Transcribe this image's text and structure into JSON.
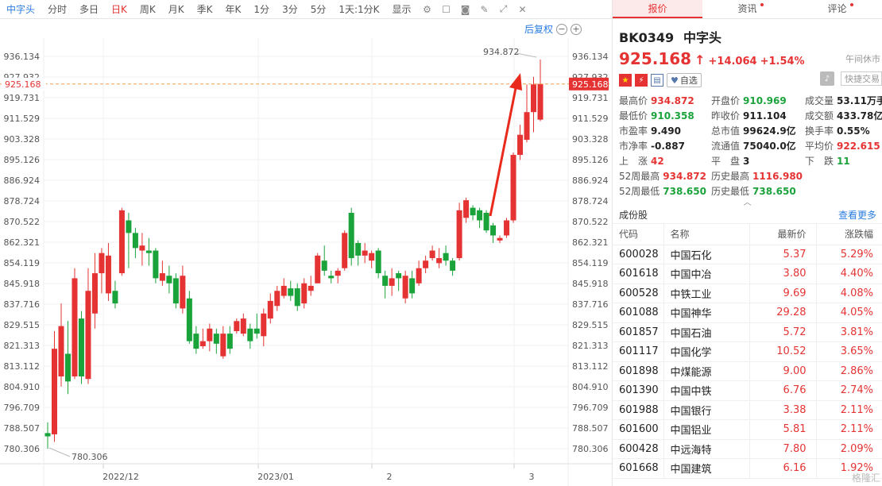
{
  "toolbar": {
    "items": [
      "中字头",
      "分时",
      "多日",
      "日K",
      "周K",
      "月K",
      "季K",
      "年K",
      "1分",
      "3分",
      "5分",
      "1天:1分K",
      "显示"
    ],
    "active": "日K",
    "selected": "中字头"
  },
  "subbar": {
    "fq": "后复权"
  },
  "price_labels": {
    "last_price": "925.168",
    "high_marker": "934.872",
    "low_marker": "780.306"
  },
  "chart_data": {
    "type": "candlestick",
    "ylim": [
      780.306,
      936.134
    ],
    "yticks": [
      "936.134",
      "927.932",
      "919.731",
      "911.529",
      "903.328",
      "895.126",
      "886.924",
      "878.724",
      "870.522",
      "862.321",
      "854.119",
      "845.918",
      "837.716",
      "829.515",
      "821.313",
      "813.112",
      "804.910",
      "796.709",
      "788.507",
      "780.306"
    ],
    "xticks": [
      "2022/12",
      "2023/01",
      "2",
      "3"
    ],
    "last_price": 925.168,
    "candles": [
      {
        "o": 786.5,
        "c": 785.2,
        "h": 790.8,
        "l": 780.3
      },
      {
        "o": 786.0,
        "c": 820.0,
        "h": 827.0,
        "l": 783.0
      },
      {
        "o": 809.0,
        "c": 829.0,
        "h": 838.0,
        "l": 805.0
      },
      {
        "o": 818.0,
        "c": 807.0,
        "h": 831.0,
        "l": 802.0
      },
      {
        "o": 809.0,
        "c": 848.0,
        "h": 852.0,
        "l": 808.0
      },
      {
        "o": 832.0,
        "c": 809.0,
        "h": 835.0,
        "l": 806.0
      },
      {
        "o": 808.0,
        "c": 843.0,
        "h": 852.0,
        "l": 806.0
      },
      {
        "o": 834.0,
        "c": 850.0,
        "h": 858.0,
        "l": 828.0
      },
      {
        "o": 850.0,
        "c": 858.0,
        "h": 860.0,
        "l": 842.0
      },
      {
        "o": 842.0,
        "c": 857.0,
        "h": 862.0,
        "l": 839.0
      },
      {
        "o": 843.0,
        "c": 838.0,
        "h": 847.0,
        "l": 836.0
      },
      {
        "o": 850.0,
        "c": 875.0,
        "h": 876.0,
        "l": 849.0
      },
      {
        "o": 871.0,
        "c": 866.0,
        "h": 874.0,
        "l": 852.0
      },
      {
        "o": 866.0,
        "c": 860.0,
        "h": 868.0,
        "l": 856.0
      },
      {
        "o": 859.0,
        "c": 861.0,
        "h": 866.0,
        "l": 853.0
      },
      {
        "o": 859.0,
        "c": 858.0,
        "h": 864.0,
        "l": 853.0
      },
      {
        "o": 859.0,
        "c": 848.0,
        "h": 860.0,
        "l": 846.0
      },
      {
        "o": 847.0,
        "c": 850.0,
        "h": 855.0,
        "l": 845.0
      },
      {
        "o": 849.0,
        "c": 846.0,
        "h": 853.0,
        "l": 842.0
      },
      {
        "o": 848.0,
        "c": 838.0,
        "h": 850.0,
        "l": 836.0
      },
      {
        "o": 836.0,
        "c": 849.0,
        "h": 853.0,
        "l": 834.0
      },
      {
        "o": 840.0,
        "c": 823.0,
        "h": 843.0,
        "l": 822.0
      },
      {
        "o": 826.0,
        "c": 820.0,
        "h": 829.0,
        "l": 818.0
      },
      {
        "o": 821.0,
        "c": 823.0,
        "h": 828.0,
        "l": 820.0
      },
      {
        "o": 823.0,
        "c": 828.0,
        "h": 830.0,
        "l": 819.0
      },
      {
        "o": 826.0,
        "c": 822.0,
        "h": 828.0,
        "l": 818.0
      },
      {
        "o": 817.0,
        "c": 826.0,
        "h": 829.0,
        "l": 816.0
      },
      {
        "o": 826.0,
        "c": 820.0,
        "h": 829.0,
        "l": 818.0
      },
      {
        "o": 827.0,
        "c": 831.0,
        "h": 832.0,
        "l": 826.0
      },
      {
        "o": 826.0,
        "c": 832.0,
        "h": 834.0,
        "l": 825.0
      },
      {
        "o": 828.0,
        "c": 823.0,
        "h": 830.0,
        "l": 820.0
      },
      {
        "o": 828.0,
        "c": 826.0,
        "h": 834.0,
        "l": 824.0
      },
      {
        "o": 825.0,
        "c": 834.0,
        "h": 836.0,
        "l": 821.0
      },
      {
        "o": 832.0,
        "c": 839.0,
        "h": 842.0,
        "l": 830.0
      },
      {
        "o": 837.0,
        "c": 843.0,
        "h": 845.0,
        "l": 835.0
      },
      {
        "o": 841.0,
        "c": 845.0,
        "h": 848.0,
        "l": 840.0
      },
      {
        "o": 844.0,
        "c": 841.0,
        "h": 847.0,
        "l": 839.0
      },
      {
        "o": 844.0,
        "c": 837.0,
        "h": 846.0,
        "l": 835.0
      },
      {
        "o": 838.0,
        "c": 846.0,
        "h": 848.0,
        "l": 836.0
      },
      {
        "o": 843.0,
        "c": 845.0,
        "h": 849.0,
        "l": 841.0
      },
      {
        "o": 846.0,
        "c": 857.0,
        "h": 858.0,
        "l": 846.0
      },
      {
        "o": 855.0,
        "c": 851.0,
        "h": 861.0,
        "l": 849.0
      },
      {
        "o": 849.0,
        "c": 848.0,
        "h": 851.0,
        "l": 846.0
      },
      {
        "o": 849.0,
        "c": 851.0,
        "h": 852.0,
        "l": 846.0
      },
      {
        "o": 852.0,
        "c": 866.0,
        "h": 867.0,
        "l": 851.0
      },
      {
        "o": 874.0,
        "c": 856.0,
        "h": 876.0,
        "l": 853.0
      },
      {
        "o": 862.0,
        "c": 857.0,
        "h": 863.0,
        "l": 853.0
      },
      {
        "o": 857.0,
        "c": 859.0,
        "h": 862.0,
        "l": 854.0
      },
      {
        "o": 855.0,
        "c": 858.0,
        "h": 859.0,
        "l": 852.0
      },
      {
        "o": 859.0,
        "c": 850.0,
        "h": 860.0,
        "l": 848.0
      },
      {
        "o": 849.0,
        "c": 845.0,
        "h": 851.0,
        "l": 840.0
      },
      {
        "o": 845.0,
        "c": 848.0,
        "h": 852.0,
        "l": 841.0
      },
      {
        "o": 850.0,
        "c": 848.0,
        "h": 851.0,
        "l": 843.0
      },
      {
        "o": 840.0,
        "c": 849.0,
        "h": 851.0,
        "l": 838.0
      },
      {
        "o": 848.0,
        "c": 842.0,
        "h": 851.0,
        "l": 840.0
      },
      {
        "o": 846.0,
        "c": 852.0,
        "h": 855.0,
        "l": 845.0
      },
      {
        "o": 852.0,
        "c": 855.0,
        "h": 857.0,
        "l": 850.0
      },
      {
        "o": 856.0,
        "c": 859.0,
        "h": 861.0,
        "l": 855.0
      },
      {
        "o": 854.0,
        "c": 856.0,
        "h": 860.0,
        "l": 852.0
      },
      {
        "o": 858.0,
        "c": 855.0,
        "h": 861.0,
        "l": 853.0
      },
      {
        "o": 855.0,
        "c": 851.0,
        "h": 856.0,
        "l": 849.0
      },
      {
        "o": 856.0,
        "c": 875.0,
        "h": 878.0,
        "l": 855.0
      },
      {
        "o": 872.0,
        "c": 879.0,
        "h": 880.0,
        "l": 870.0
      },
      {
        "o": 876.0,
        "c": 873.0,
        "h": 877.0,
        "l": 871.0
      },
      {
        "o": 875.0,
        "c": 871.0,
        "h": 876.0,
        "l": 868.0
      },
      {
        "o": 874.0,
        "c": 867.0,
        "h": 875.0,
        "l": 866.0
      },
      {
        "o": 869.0,
        "c": 865.0,
        "h": 870.0,
        "l": 862.0
      },
      {
        "o": 863.0,
        "c": 864.0,
        "h": 865.0,
        "l": 862.0
      },
      {
        "o": 865.0,
        "c": 871.0,
        "h": 872.0,
        "l": 864.0
      },
      {
        "o": 871.0,
        "c": 897.0,
        "h": 898.0,
        "l": 870.0
      },
      {
        "o": 897.0,
        "c": 905.0,
        "h": 909.0,
        "l": 895.0
      },
      {
        "o": 903.0,
        "c": 914.0,
        "h": 925.0,
        "l": 902.0
      },
      {
        "o": 914.0,
        "c": 925.0,
        "h": 928.0,
        "l": 906.0
      },
      {
        "o": 911.0,
        "c": 925.2,
        "h": 934.9,
        "l": 910.4
      }
    ],
    "candle_day": [
      0,
      1,
      2,
      3,
      4,
      5,
      6,
      7,
      8,
      9,
      10,
      11,
      12,
      13,
      14,
      15,
      16,
      17,
      18,
      19,
      20,
      21,
      22,
      23,
      24,
      25,
      26,
      27,
      28,
      29,
      30,
      31,
      32,
      33,
      34,
      35,
      36,
      37,
      38,
      39,
      40,
      41,
      42,
      43,
      44,
      45,
      46,
      47,
      48,
      49,
      50,
      51,
      52,
      53,
      54,
      55,
      56,
      57,
      58,
      59,
      60,
      61,
      62,
      63,
      64,
      65,
      66,
      67,
      68,
      69,
      70,
      71,
      72,
      73
    ]
  },
  "stock": {
    "code": "BK0349",
    "name": "中字头",
    "price": "925.168",
    "arrow": "↑",
    "change": "+14.064",
    "change_pct": "+1.54%",
    "status": "午间休市",
    "watch_label": "自选",
    "quick_trade": "快捷交易"
  },
  "stats": [
    {
      "label": "最高价",
      "value": "934.872",
      "color": "red"
    },
    {
      "label": "开盘价",
      "value": "910.969",
      "color": "green"
    },
    {
      "label": "成交量",
      "value": "53.11万手",
      "color": "dark"
    },
    {
      "label": "最低价",
      "value": "910.358",
      "color": "green"
    },
    {
      "label": "昨收价",
      "value": "911.104",
      "color": "dark"
    },
    {
      "label": "成交额",
      "value": "433.78亿",
      "color": "dark"
    },
    {
      "label": "市盈率",
      "value": "9.490",
      "color": "dark"
    },
    {
      "label": "总市值",
      "value": "99624.9亿",
      "color": "dark"
    },
    {
      "label": "换手率",
      "value": "0.55%",
      "color": "dark"
    },
    {
      "label": "市净率",
      "value": "-0.887",
      "color": "dark"
    },
    {
      "label": "流通值",
      "value": "75040.0亿",
      "color": "dark"
    },
    {
      "label": "平均价",
      "value": "922.615",
      "color": "red"
    },
    {
      "label": "上　涨",
      "value": "42",
      "color": "red"
    },
    {
      "label": "平　盘",
      "value": "3",
      "color": "dark"
    },
    {
      "label": "下　跌",
      "value": "11",
      "color": "green"
    },
    {
      "label": "52周最高",
      "value": "934.872",
      "color": "red"
    },
    {
      "label": "历史最高",
      "value": "1116.980",
      "color": "red"
    },
    {
      "label": "",
      "value": "",
      "color": "dark"
    },
    {
      "label": "52周最低",
      "value": "738.650",
      "color": "green"
    },
    {
      "label": "历史最低",
      "value": "738.650",
      "color": "green"
    },
    {
      "label": "",
      "value": "",
      "color": "dark"
    }
  ],
  "tabs": [
    {
      "label": "报价",
      "dot": false
    },
    {
      "label": "资讯",
      "dot": true
    },
    {
      "label": "评论",
      "dot": true
    }
  ],
  "constituents": {
    "title": "成份股",
    "more": "查看更多",
    "headers": [
      "代码",
      "名称",
      "最新价",
      "涨跌幅"
    ],
    "rows": [
      [
        "600028",
        "中国石化",
        "5.37",
        "5.29%"
      ],
      [
        "601618",
        "中国中冶",
        "3.80",
        "4.40%"
      ],
      [
        "600528",
        "中铁工业",
        "9.69",
        "4.08%"
      ],
      [
        "601088",
        "中国神华",
        "29.28",
        "4.05%"
      ],
      [
        "601857",
        "中国石油",
        "5.72",
        "3.81%"
      ],
      [
        "601117",
        "中国化学",
        "10.52",
        "3.65%"
      ],
      [
        "601898",
        "中煤能源",
        "9.00",
        "2.86%"
      ],
      [
        "601390",
        "中国中铁",
        "6.76",
        "2.74%"
      ],
      [
        "601988",
        "中国银行",
        "3.38",
        "2.11%"
      ],
      [
        "601600",
        "中国铝业",
        "5.81",
        "2.11%"
      ],
      [
        "600428",
        "中远海特",
        "7.80",
        "2.09%"
      ],
      [
        "601668",
        "中国建筑",
        "6.16",
        "1.92%"
      ]
    ]
  },
  "watermark": "格隆汇"
}
